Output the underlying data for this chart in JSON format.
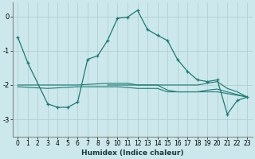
{
  "xlabel": "Humidex (Indice chaleur)",
  "background_color": "#cce8ec",
  "grid_color": "#aacccc",
  "line_color": "#1a7a72",
  "xlim": [
    -0.5,
    23.5
  ],
  "ylim": [
    -3.5,
    0.4
  ],
  "yticks": [
    -3,
    -2,
    -1,
    0
  ],
  "xticks": [
    0,
    1,
    2,
    3,
    4,
    5,
    6,
    7,
    8,
    9,
    10,
    11,
    12,
    13,
    14,
    15,
    16,
    17,
    18,
    19,
    20,
    21,
    22,
    23
  ],
  "series1": {
    "x": [
      0,
      1,
      3,
      4,
      5,
      6,
      7,
      8,
      9,
      10,
      11,
      12,
      13,
      14,
      15,
      16,
      17,
      18,
      19,
      20,
      21,
      22,
      23
    ],
    "y": [
      -0.6,
      -1.35,
      -2.55,
      -2.65,
      -2.65,
      -2.5,
      -1.25,
      -1.15,
      -0.7,
      -0.05,
      -0.02,
      0.18,
      -0.38,
      -0.55,
      -0.7,
      -1.25,
      -1.6,
      -1.85,
      -1.9,
      -1.85,
      -2.85,
      -2.45,
      -2.35
    ]
  },
  "series2": {
    "x": [
      0,
      3,
      6,
      9,
      10,
      11,
      12,
      13,
      14,
      15,
      16,
      17,
      18,
      19,
      20,
      21,
      22,
      23
    ],
    "y": [
      -2.0,
      -2.0,
      -2.0,
      -1.95,
      -1.95,
      -1.95,
      -2.0,
      -2.0,
      -2.0,
      -2.0,
      -2.0,
      -2.0,
      -2.0,
      -1.95,
      -1.9,
      -2.1,
      -2.2,
      -2.35
    ]
  },
  "series3": {
    "x": [
      0,
      3,
      6,
      9,
      10,
      11,
      12,
      13,
      14,
      15,
      16,
      17,
      18,
      19,
      20,
      21,
      22,
      23
    ],
    "y": [
      -2.05,
      -2.1,
      -2.05,
      -2.05,
      -2.05,
      -2.07,
      -2.1,
      -2.1,
      -2.1,
      -2.2,
      -2.2,
      -2.2,
      -2.2,
      -2.2,
      -2.2,
      -2.25,
      -2.3,
      -2.35
    ]
  },
  "series4": {
    "x": [
      9,
      10,
      11,
      12,
      13,
      14,
      15,
      16,
      17,
      18,
      19,
      20,
      21,
      22,
      23
    ],
    "y": [
      -2.0,
      -2.0,
      -2.0,
      -2.0,
      -2.0,
      -2.0,
      -2.15,
      -2.2,
      -2.2,
      -2.2,
      -2.15,
      -2.12,
      -2.2,
      -2.28,
      -2.35
    ]
  },
  "xlabel_fontsize": 6.5,
  "tick_fontsize": 5.5,
  "ytick_fontsize": 6
}
